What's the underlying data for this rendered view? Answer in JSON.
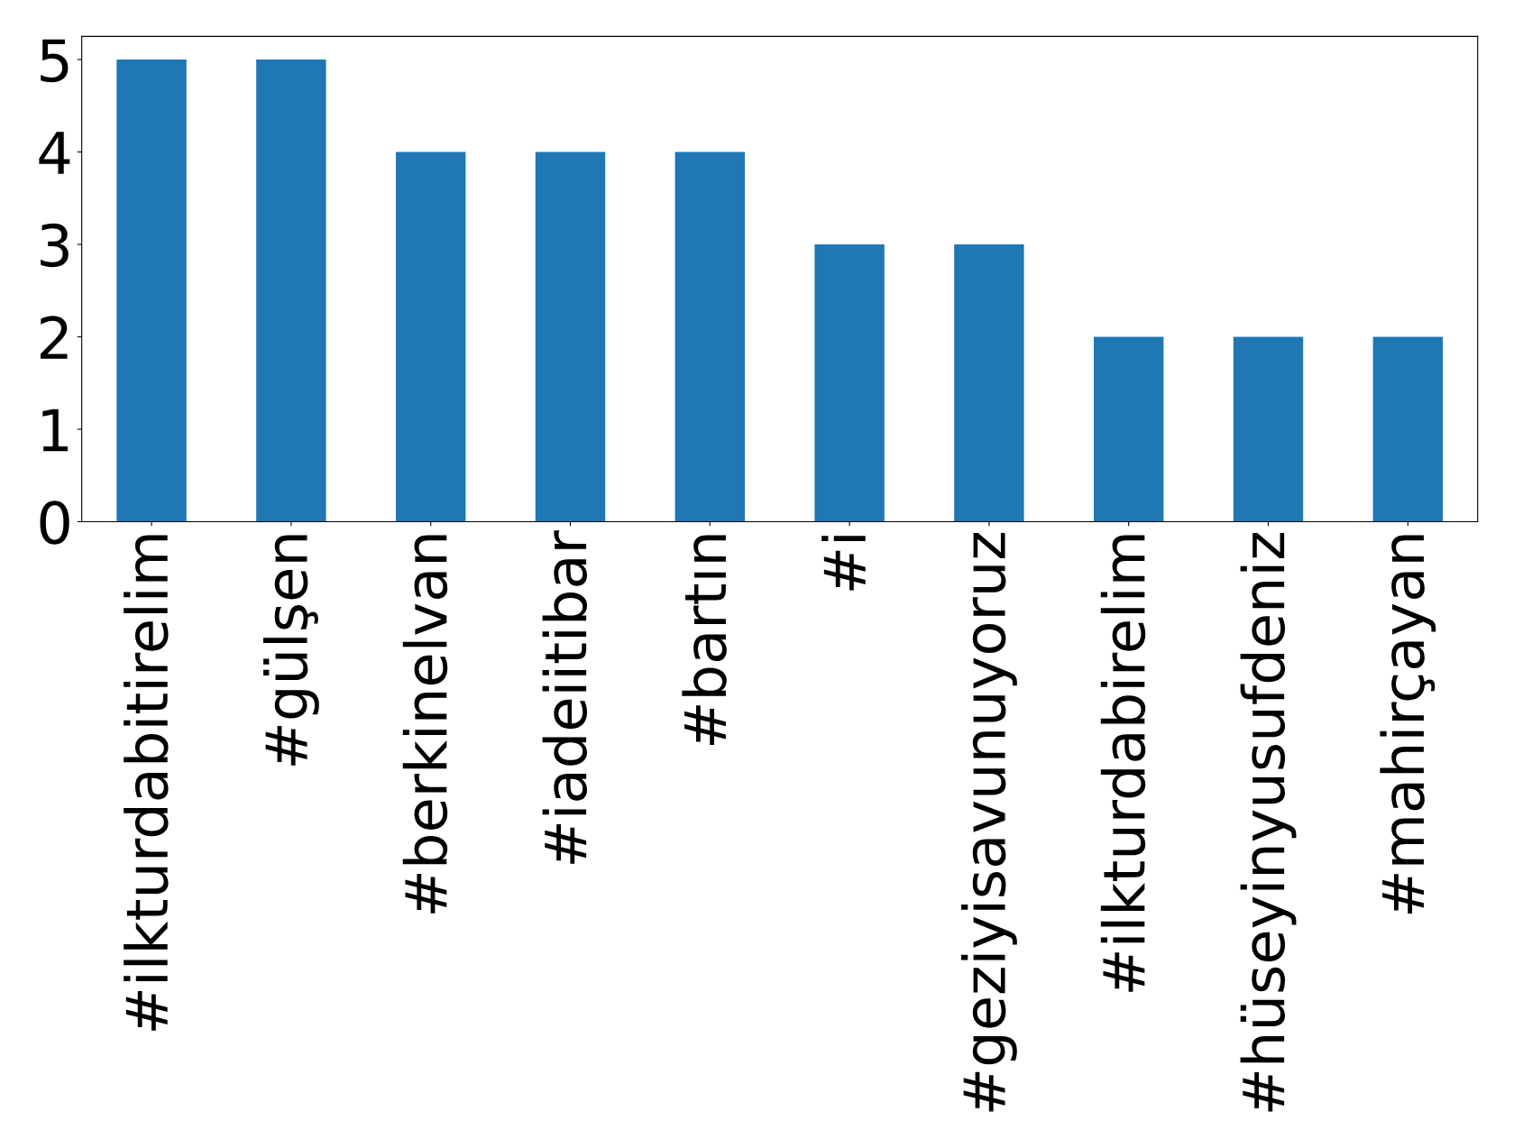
{
  "chart_data": {
    "type": "bar",
    "categories": [
      "#ilkturdabitirelim",
      "#gülşen",
      "#berkinelvan",
      "#iadeiitibar",
      "#bartın",
      "#i",
      "#geziyisavunuyoruz",
      "#ilkturdabirelim",
      "#hüseyinyusufdeniz",
      "#mahirçayan"
    ],
    "values": [
      5,
      5,
      4,
      4,
      4,
      3,
      3,
      2,
      2,
      2
    ],
    "color": "#1f77b4",
    "ylim": [
      0,
      5.25
    ],
    "yticks": [
      0,
      1,
      2,
      3,
      4,
      5
    ],
    "grid": false,
    "legend": false
  }
}
